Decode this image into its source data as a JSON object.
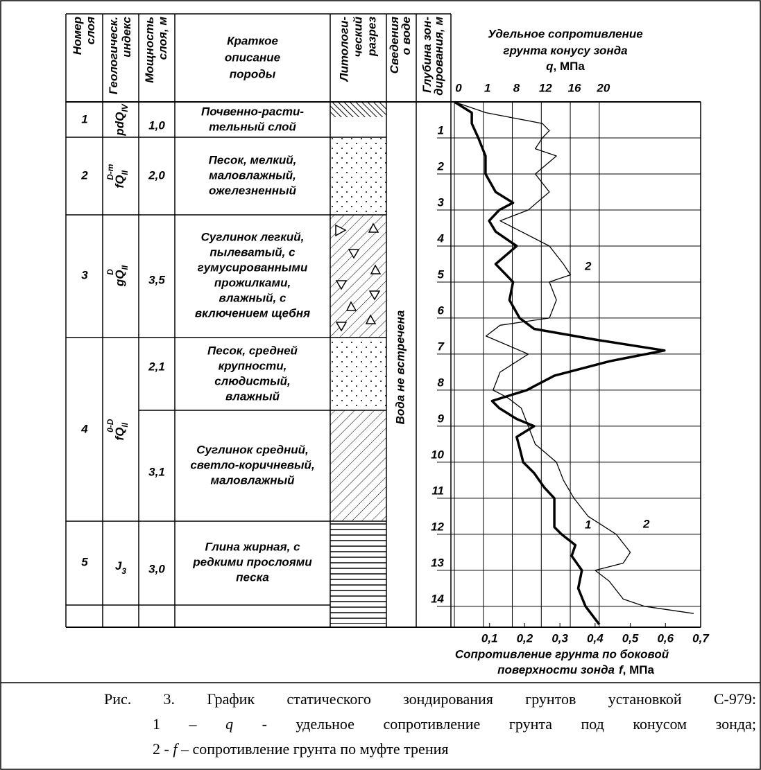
{
  "header": {
    "layer_no": [
      "Номер",
      "слоя"
    ],
    "geo_index": [
      "Геологическ.",
      "индекс"
    ],
    "thickness": [
      "Мощность",
      "слоя, м"
    ],
    "description": [
      "Краткое",
      "описание",
      "породы"
    ],
    "lithology": [
      "Литологи-",
      "ческий",
      "разрез"
    ],
    "water": [
      "Сведения",
      "о воде"
    ],
    "depth": [
      "Глубина зон-",
      "дирования, м"
    ]
  },
  "layers": [
    {
      "number": "1",
      "index": {
        "base": "pdQ",
        "sub": "IV"
      }
    },
    {
      "number": "2",
      "index": {
        "base": "fQ",
        "sub": "II",
        "sup": "D-m"
      }
    },
    {
      "number": "3",
      "index": {
        "base": "gQ",
        "sub": "II",
        "sup": "D"
      }
    },
    {
      "number": "4",
      "index": {
        "base": "fQ",
        "sub": "II",
        "sup": "0-D"
      }
    },
    {
      "number": "5",
      "index": {
        "base": "J",
        "sub": "3"
      }
    }
  ],
  "rows": [
    {
      "thickness": "1,0",
      "description": [
        "Почвенно-расти-",
        "тельный слой"
      ]
    },
    {
      "thickness": "2,0",
      "description": [
        "Песок, мелкий,",
        "маловлажный,",
        "ожелезненный"
      ]
    },
    {
      "thickness": "3,5",
      "description": [
        "Суглинок легкий,",
        "пылеватый, с",
        "гумусированными",
        "прожилками,",
        "влажный, с",
        "включением щебня"
      ]
    },
    {
      "thickness": "2,1",
      "description": [
        "Песок, средней",
        "крупности,",
        "слюдистый,",
        "влажный"
      ]
    },
    {
      "thickness": "3,1",
      "description": [
        "Суглинок средний,",
        "светло-коричневый,",
        "маловлажный"
      ]
    },
    {
      "thickness": "3,0",
      "description": [
        "Глина жирная, с",
        "редкими прослоями",
        "песка"
      ]
    }
  ],
  "water": "Вода не встречена",
  "chart_data": {
    "type": "line",
    "title": [
      "Удельное сопротивление",
      "грунта конусу зонда"
    ],
    "x_label": {
      "symbol": "q",
      "unit": ", МПа"
    },
    "xlim": [
      0,
      34
    ],
    "xticks": [
      0,
      1,
      8,
      12,
      16,
      20
    ],
    "x2_label": {
      "lines": [
        "Сопротивление грунта по боковой",
        "поверхности зонда"
      ],
      "symbol": "f",
      "unit": ", МПа"
    },
    "x2lim": [
      0,
      0.7
    ],
    "x2ticks": [
      {
        "value": 0.1,
        "label": "0,1"
      },
      {
        "value": 0.2,
        "label": "0,2"
      },
      {
        "value": 0.3,
        "label": "0,3"
      },
      {
        "value": 0.4,
        "label": "0,4"
      },
      {
        "value": 0.5,
        "label": "0,5"
      },
      {
        "value": 0.6,
        "label": "0,6"
      },
      {
        "value": 0.7,
        "label": "0,7"
      }
    ],
    "ylim": [
      0,
      14.58
    ],
    "yticks": [
      1,
      2,
      3,
      4,
      5,
      6,
      7,
      8,
      9,
      10,
      11,
      12,
      13,
      14
    ],
    "grid": true,
    "series": [
      {
        "axis": "x",
        "color": "#000000",
        "depths": [
          0,
          0.3,
          0.6,
          1.0,
          1.5,
          2.0,
          2.5,
          2.8,
          3.0,
          3.3,
          3.6,
          4.0,
          4.5,
          5.0,
          5.5,
          6.0,
          6.3,
          6.6,
          6.9,
          7.2,
          7.6,
          8.0,
          8.3,
          8.5,
          8.8,
          9.0,
          9.3,
          9.6,
          10.0,
          10.3,
          10.7,
          11.0,
          11.5,
          11.8,
          12.0,
          12.3,
          12.6,
          13.0,
          13.5,
          14.0,
          14.5
        ],
        "values": [
          0,
          2.4,
          2.4,
          3.3,
          4.3,
          4.3,
          5.7,
          8.1,
          6.2,
          4.8,
          5.7,
          8.6,
          5.7,
          8.1,
          7.6,
          9.0,
          11.0,
          19.5,
          29.0,
          21.4,
          13.8,
          10.0,
          5.2,
          6.2,
          8.6,
          11.0,
          8.6,
          9.0,
          9.5,
          11.0,
          12.4,
          13.8,
          13.8,
          13.8,
          14.8,
          16.7,
          16.2,
          17.6,
          17.1,
          18.1,
          20.0
        ]
      },
      {
        "axis": "x2",
        "color": "#000000",
        "depths": [
          0,
          0.3,
          0.6,
          0.8,
          1.0,
          1.3,
          1.5,
          2.0,
          2.5,
          3.0,
          3.3,
          3.6,
          4.0,
          4.5,
          4.8,
          5.0,
          5.5,
          6.0,
          6.2,
          6.5,
          7.0,
          7.5,
          8.0,
          8.2,
          8.5,
          9.0,
          9.5,
          10.0,
          10.5,
          11.0,
          11.5,
          12.0,
          12.5,
          12.8,
          13.0,
          13.3,
          13.8,
          14.0,
          14.2
        ],
        "values": [
          0,
          0.09,
          0.25,
          0.27,
          0.25,
          0.23,
          0.29,
          0.23,
          0.27,
          0.21,
          0.13,
          0.19,
          0.27,
          0.31,
          0.33,
          0.27,
          0.29,
          0.27,
          0.13,
          0.09,
          0.21,
          0.13,
          0.11,
          0.15,
          0.19,
          0.21,
          0.23,
          0.29,
          0.31,
          0.34,
          0.38,
          0.46,
          0.5,
          0.48,
          0.4,
          0.44,
          0.48,
          0.54,
          0.68
        ]
      }
    ],
    "curve_labels": [
      "2",
      "1",
      "2"
    ]
  },
  "caption": [
    [
      "Рис. 3. График статического зондирования грунтов установкой С-979:"
    ],
    [
      "1 – ",
      "q",
      " - удельное сопротивление грунта под конусом зонда;"
    ],
    [
      "2 - ",
      "f",
      " – сопротивление грунта по муфте трения"
    ]
  ]
}
